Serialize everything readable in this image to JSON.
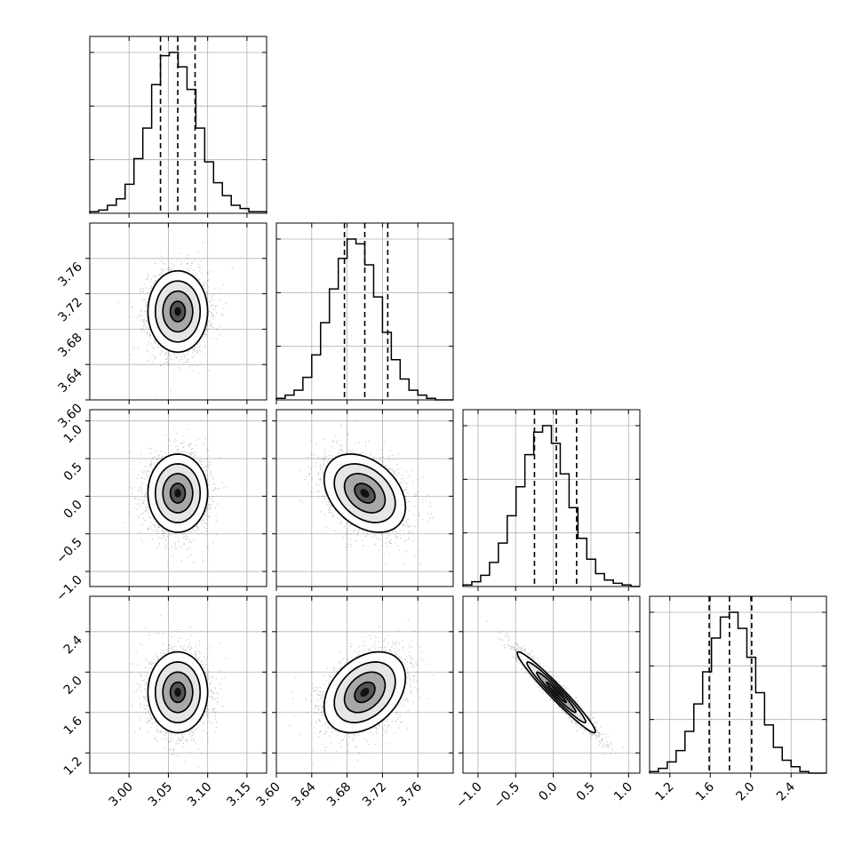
{
  "chart_data": {
    "type": "corner",
    "grid": true,
    "parameters": [
      {
        "index": 0,
        "range": [
          2.95,
          3.175
        ],
        "ticks": [
          3.0,
          3.05,
          3.1,
          3.15
        ],
        "tick_labels": [
          "3.00",
          "3.05",
          "3.10",
          "3.15"
        ],
        "quantiles": [
          3.04,
          3.062,
          3.084
        ]
      },
      {
        "index": 1,
        "range": [
          3.6,
          3.8
        ],
        "ticks": [
          3.6,
          3.64,
          3.68,
          3.72,
          3.76
        ],
        "tick_labels": [
          "3.60",
          "3.64",
          "3.68",
          "3.72",
          "3.76"
        ],
        "quantiles": [
          3.677,
          3.7,
          3.726
        ]
      },
      {
        "index": 2,
        "range": [
          -1.2,
          1.15
        ],
        "ticks": [
          -1.0,
          -0.5,
          0.0,
          0.5,
          1.0
        ],
        "tick_labels": [
          "−1.0",
          "−0.5",
          "0.0",
          "0.5",
          "1.0"
        ],
        "quantiles": [
          -0.25,
          0.04,
          0.31
        ]
      },
      {
        "index": 3,
        "range": [
          1.0,
          2.75
        ],
        "ticks": [
          1.2,
          1.6,
          2.0,
          2.4
        ],
        "tick_labels": [
          "1.2",
          "1.6",
          "2.0",
          "2.4"
        ],
        "quantiles": [
          1.59,
          1.79,
          2.01
        ]
      }
    ],
    "histograms": [
      {
        "param": 0,
        "edges_range": [
          2.95,
          3.175
        ],
        "counts": [
          1,
          2,
          5,
          9,
          18,
          34,
          53,
          80,
          98,
          100,
          91,
          77,
          53,
          32,
          19,
          11,
          5,
          3,
          1,
          1
        ]
      },
      {
        "param": 1,
        "edges_range": [
          3.6,
          3.8
        ],
        "counts": [
          1,
          3,
          6,
          14,
          28,
          48,
          69,
          88,
          100,
          97,
          84,
          64,
          42,
          25,
          13,
          6,
          3,
          1,
          0,
          0
        ]
      },
      {
        "param": 2,
        "edges_range": [
          -1.2,
          1.15
        ],
        "counts": [
          1,
          3,
          7,
          15,
          27,
          44,
          62,
          82,
          96,
          100,
          89,
          70,
          49,
          30,
          17,
          8,
          4,
          2,
          1,
          0
        ]
      },
      {
        "param": 3,
        "edges_range": [
          1.0,
          2.75
        ],
        "counts": [
          1,
          3,
          7,
          14,
          26,
          43,
          63,
          84,
          97,
          100,
          90,
          72,
          50,
          30,
          16,
          8,
          4,
          1,
          0,
          0
        ]
      }
    ],
    "pairs": [
      {
        "x": 0,
        "y": 1,
        "mean": [
          3.062,
          3.7
        ],
        "sigma": [
          0.019,
          0.023
        ],
        "corr": 0.0
      },
      {
        "x": 0,
        "y": 2,
        "mean": [
          3.062,
          0.04
        ],
        "sigma": [
          0.019,
          0.26
        ],
        "corr": 0.0
      },
      {
        "x": 1,
        "y": 2,
        "mean": [
          3.7,
          0.04
        ],
        "sigma": [
          0.023,
          0.26
        ],
        "corr": -0.35
      },
      {
        "x": 0,
        "y": 3,
        "mean": [
          3.062,
          1.8
        ],
        "sigma": [
          0.019,
          0.2
        ],
        "corr": 0.0
      },
      {
        "x": 1,
        "y": 3,
        "mean": [
          3.7,
          1.8
        ],
        "sigma": [
          0.023,
          0.2
        ],
        "corr": 0.35
      },
      {
        "x": 2,
        "y": 3,
        "mean": [
          0.04,
          1.8
        ],
        "sigma": [
          0.26,
          0.2
        ],
        "corr": -0.97
      }
    ],
    "contour_levels_sigma": [
      0.5,
      1.0,
      1.5,
      2.0
    ]
  }
}
